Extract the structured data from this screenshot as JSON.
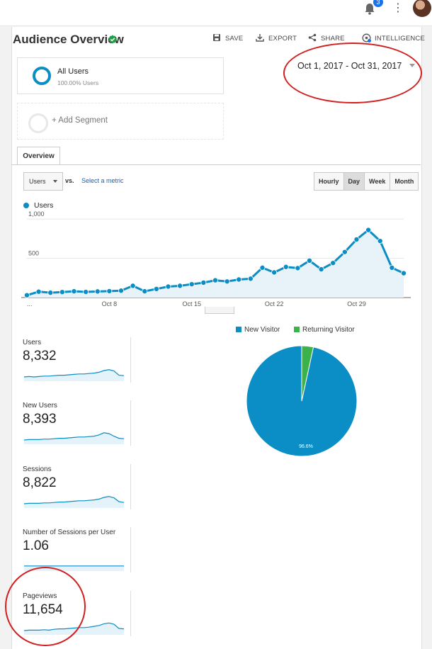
{
  "topbar": {
    "notification_count": "3"
  },
  "header": {
    "title": "Audience Overview",
    "save": "SAVE",
    "export": "EXPORT",
    "share": "SHARE",
    "intelligence": "INTELLIGENCE"
  },
  "segments": {
    "active_name": "All Users",
    "active_pct": "100.00% Users",
    "add_label": "+ Add Segment"
  },
  "date_range": "Oct 1, 2017 - Oct 31, 2017",
  "tabs": {
    "overview": "Overview"
  },
  "controls": {
    "metric_select": "Users",
    "vs": "vs.",
    "select_metric": "Select a metric",
    "granularity": [
      "Hourly",
      "Day",
      "Week",
      "Month"
    ],
    "active_granularity": "Day"
  },
  "chart_data": [
    {
      "type": "line",
      "title": "",
      "series": [
        {
          "name": "Users",
          "values": [
            30,
            75,
            62,
            70,
            80,
            72,
            78,
            82,
            88,
            150,
            80,
            110,
            140,
            150,
            170,
            190,
            220,
            205,
            230,
            240,
            380,
            320,
            390,
            375,
            470,
            360,
            440,
            580,
            740,
            860,
            720,
            380,
            310
          ]
        }
      ],
      "x_tick_labels": [
        "...",
        "Oct 8",
        "Oct 15",
        "Oct 22",
        "Oct 29"
      ],
      "x_tick_index": [
        0,
        7,
        14,
        21,
        28
      ],
      "y_tick_labels": [
        "1,000",
        "500"
      ],
      "y_tick_values": [
        1000,
        500
      ],
      "ylim": [
        0,
        1100
      ],
      "color": "#0b8dc5"
    },
    {
      "type": "pie",
      "legend": [
        "New Visitor",
        "Returning Visitor"
      ],
      "values": [
        96.6,
        3.4
      ],
      "colors": [
        "#0b8dc5",
        "#3cb34a"
      ],
      "slice_label": "96.6%"
    }
  ],
  "metrics": [
    {
      "label": "Users",
      "value": "8,332"
    },
    {
      "label": "New Users",
      "value": "8,393"
    },
    {
      "label": "Sessions",
      "value": "8,822"
    },
    {
      "label": "Number of Sessions per User",
      "value": "1.06"
    },
    {
      "label": "Pageviews",
      "value": "11,654"
    }
  ]
}
